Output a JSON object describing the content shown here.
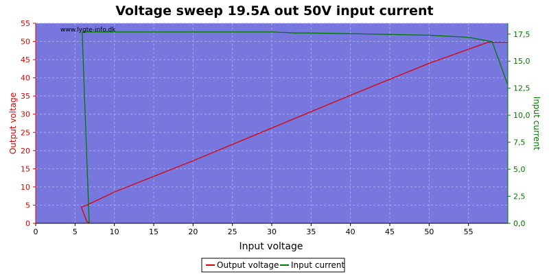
{
  "chart_data": {
    "type": "line",
    "title": "Voltage sweep 19.5A out 50V input current",
    "watermark": "www.lygte-info.dk",
    "xlabel": "Input voltage",
    "ylabel_left": "Output voltage",
    "ylabel_right": "Input current",
    "xlim": [
      0,
      60
    ],
    "ylim_left": [
      0,
      55
    ],
    "ylim_right": [
      0,
      18.5
    ],
    "x_ticks": [
      0,
      5,
      10,
      15,
      20,
      25,
      30,
      35,
      40,
      45,
      50,
      55
    ],
    "y_left_ticks": [
      0,
      5,
      10,
      15,
      20,
      25,
      30,
      35,
      40,
      45,
      50,
      55
    ],
    "y_right_ticks": [
      "0,0",
      "2,5",
      "5,0",
      "7,5",
      "10,0",
      "12,5",
      "15,0",
      "17,5"
    ],
    "y_right_tick_values": [
      0,
      2.5,
      5,
      7.5,
      10,
      12.5,
      15,
      17.5
    ],
    "grid": true,
    "legend_position": "bottom",
    "colors": {
      "plot_bg": "#7777dd",
      "grid": "#aaaaee",
      "output_voltage": "#dd0000",
      "input_current": "#007700",
      "left_axis": "#dd0000",
      "right_axis": "#007700"
    },
    "series": [
      {
        "name": "Output voltage",
        "axis": "left",
        "x": [
          6.8,
          6.5,
          5.8,
          6.5,
          10,
          20,
          30,
          40,
          50,
          57.5,
          60
        ],
        "y": [
          0,
          0.5,
          4.5,
          5,
          8.6,
          17.2,
          26.2,
          35.2,
          44.0,
          49.8,
          49.8
        ]
      },
      {
        "name": "Input current",
        "axis": "right",
        "x": [
          6.8,
          5.9,
          6.2,
          15,
          30,
          33,
          35,
          43,
          50,
          55,
          58,
          60
        ],
        "y": [
          0,
          17.7,
          17.7,
          17.7,
          17.7,
          17.6,
          17.6,
          17.5,
          17.4,
          17.2,
          16.8,
          12.8
        ]
      }
    ]
  }
}
